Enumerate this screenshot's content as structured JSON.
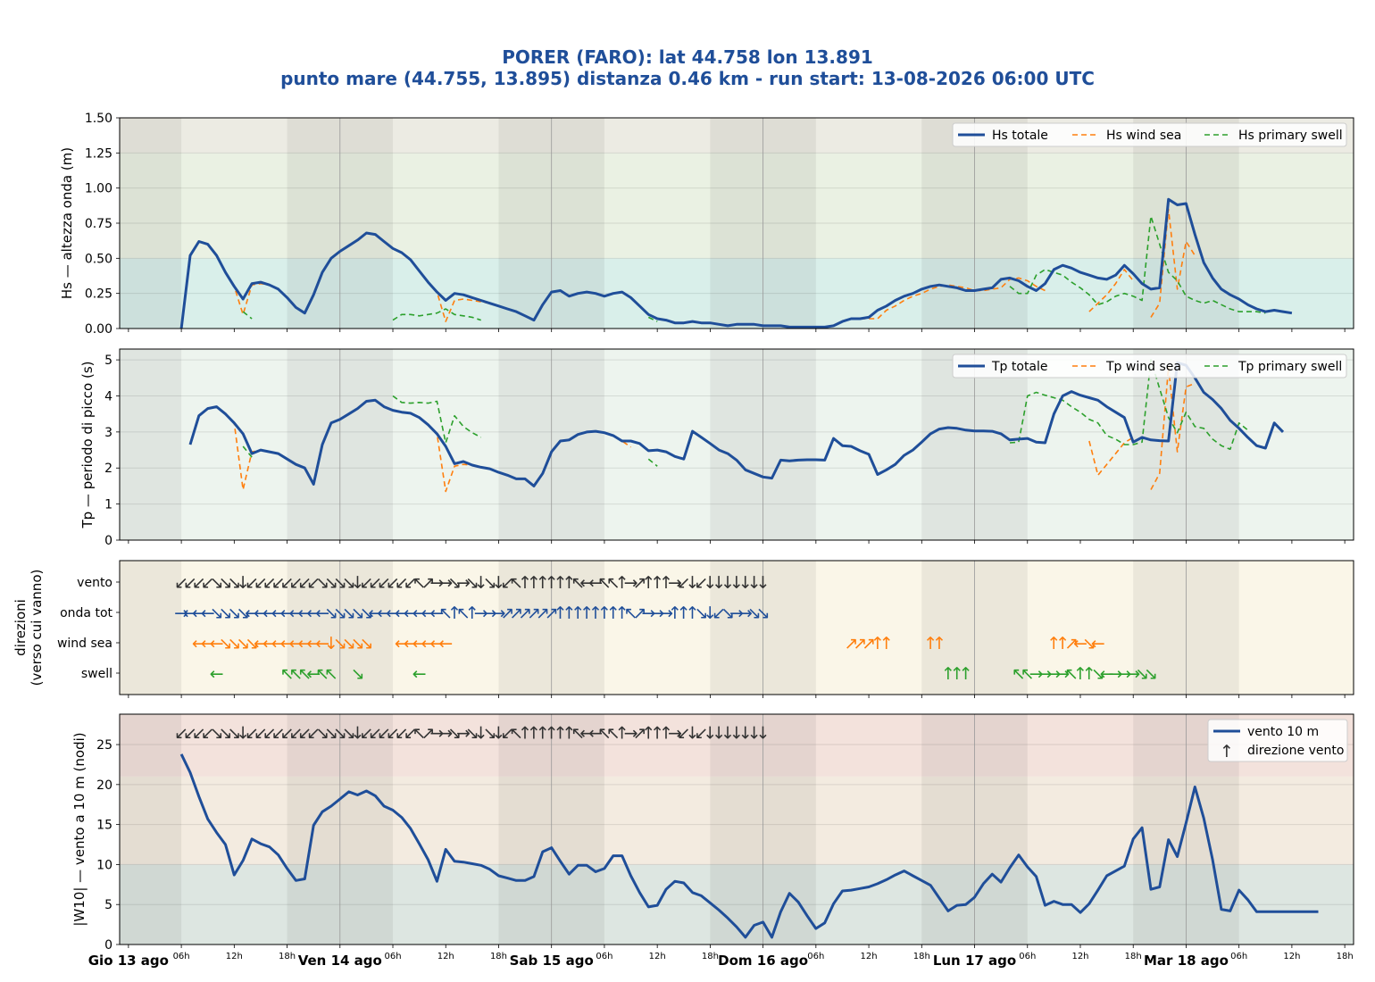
{
  "title_line1": "PORER (FARO): lat 44.758 lon 13.891",
  "title_line2": "punto mare (44.755, 13.895)  distanza 0.46 km  -  run start: 13-08-2026 06:00 UTC",
  "colors": {
    "title": "#1f4e99",
    "total": "#1f4e99",
    "wind": "#ff7f0e",
    "swell": "#2ca02c",
    "wind_arrow": "#333333"
  },
  "x_axis": {
    "day_labels": [
      "Gio 13 ago",
      "Ven 14 ago",
      "Sab 15 ago",
      "Dom 16 ago",
      "Lun 17 ago",
      "Mar 18 ago"
    ],
    "hour_labels": [
      "06h",
      "12h",
      "18h"
    ],
    "final_hour_label": "18h",
    "xlim_hours": [
      -1,
      139
    ]
  },
  "chart_data": [
    {
      "type": "line",
      "id": "hs",
      "ylabel": "Hs — altezza onda (m)",
      "ylim": [
        0,
        1.5
      ],
      "yticks": [
        "0.00",
        "0.25",
        "0.50",
        "0.75",
        "1.00",
        "1.25",
        "1.50"
      ],
      "legend": [
        "Hs totale",
        "Hs wind sea",
        "Hs primary swell"
      ],
      "series": [
        {
          "name": "Hs totale",
          "start": 6,
          "step": 1,
          "values": [
            0.0,
            0.52,
            0.62,
            0.6,
            0.52,
            0.4,
            0.3,
            0.21,
            0.32,
            0.33,
            0.31,
            0.28,
            0.22,
            0.15,
            0.11,
            0.24,
            0.4,
            0.5,
            0.55,
            0.59,
            0.63,
            0.68,
            0.67,
            0.62,
            0.57,
            0.54,
            0.49,
            0.41,
            0.33,
            0.26,
            0.2,
            0.25,
            0.24,
            0.22,
            0.2,
            0.18,
            0.16,
            0.14,
            0.12,
            0.09,
            0.06,
            0.17,
            0.26,
            0.27,
            0.23,
            0.25,
            0.26,
            0.25,
            0.23,
            0.25,
            0.26,
            0.22,
            0.16,
            0.1,
            0.07,
            0.06,
            0.04,
            0.04,
            0.05,
            0.04,
            0.04,
            0.03,
            0.02,
            0.03,
            0.03,
            0.03,
            0.02,
            0.02,
            0.02,
            0.01,
            0.01,
            0.01,
            0.01,
            0.01,
            0.02,
            0.05,
            0.07,
            0.07,
            0.08,
            0.13,
            0.16,
            0.2,
            0.23,
            0.25,
            0.28,
            0.3,
            0.31,
            0.3,
            0.29,
            0.27,
            0.27,
            0.28,
            0.29,
            0.35,
            0.36,
            0.34,
            0.3,
            0.27,
            0.32,
            0.42,
            0.45,
            0.43,
            0.4,
            0.38,
            0.36,
            0.35,
            0.38,
            0.45,
            0.39,
            0.32,
            0.28,
            0.29,
            0.92,
            0.88,
            0.89,
            0.67,
            0.47,
            0.36,
            0.28,
            0.24,
            0.21,
            0.17,
            0.14,
            0.12,
            0.13,
            0.12,
            0.11
          ]
        },
        {
          "name": "Hs wind sea",
          "segments": [
            {
              "start": 7,
              "values": [
                0.52,
                0.62,
                0.6,
                0.52,
                0.4,
                0.3,
                0.1,
                0.31,
                0.32,
                0.31,
                0.28,
                0.22,
                0.15,
                0.11,
                0.24,
                0.4,
                0.5,
                0.55,
                0.59,
                0.63,
                0.68,
                0.67,
                0.62,
                0.57,
                0.54,
                0.49,
                0.41,
                0.33,
                0.26,
                0.05,
                0.2,
                0.21,
                0.2,
                0.19,
                0.18,
                0.16,
                0.14,
                0.12,
                0.09,
                0.06,
                0.17,
                0.26,
                0.27,
                0.23,
                0.25,
                0.26,
                0.25,
                0.23,
                0.25,
                0.26,
                0.22,
                0.16,
                0.1
              ]
            },
            {
              "start": 83,
              "values": [
                0.07,
                0.07,
                0.07,
                0.13,
                0.16,
                0.2,
                0.23,
                0.25,
                0.28,
                0.3,
                0.31,
                0.3,
                0.29,
                0.27,
                0.27,
                0.28,
                0.29,
                0.35,
                0.36,
                0.34,
                0.3,
                0.27
              ]
            },
            {
              "start": 109,
              "values": [
                0.12,
                0.18,
                0.24,
                0.32,
                0.42,
                0.34
              ]
            },
            {
              "start": 116,
              "values": [
                0.08,
                0.18,
                0.85,
                0.28,
                0.62,
                0.52
              ]
            }
          ]
        },
        {
          "name": "Hs primary swell",
          "segments": [
            {
              "start": 13,
              "values": [
                0.12,
                0.07
              ]
            },
            {
              "start": 30,
              "values": [
                0.06,
                0.1,
                0.1,
                0.09,
                0.1,
                0.11,
                0.14,
                0.1,
                0.09,
                0.08,
                0.06
              ]
            },
            {
              "start": 59,
              "values": [
                0.08,
                0.05
              ]
            },
            {
              "start": 100,
              "values": [
                0.3,
                0.25,
                0.25,
                0.38,
                0.42,
                0.4,
                0.38,
                0.33,
                0.29,
                0.24,
                0.17,
                0.19,
                0.23,
                0.25,
                0.23,
                0.2,
                0.8,
                0.6,
                0.4,
                0.34,
                0.23,
                0.2,
                0.18,
                0.2,
                0.17,
                0.14,
                0.12,
                0.12,
                0.12,
                0.11
              ]
            }
          ]
        }
      ]
    },
    {
      "type": "line",
      "id": "tp",
      "ylabel": "Tp — periodo di picco (s)",
      "ylim": [
        0,
        5.3
      ],
      "yticks": [
        "0",
        "1",
        "2",
        "3",
        "4",
        "5"
      ],
      "legend": [
        "Tp totale",
        "Tp wind sea",
        "Tp primary swell"
      ],
      "series": [
        {
          "name": "Tp totale",
          "start": 7,
          "step": 1,
          "values": [
            2.65,
            3.45,
            3.65,
            3.7,
            3.5,
            3.25,
            2.95,
            2.4,
            2.5,
            2.45,
            2.4,
            2.25,
            2.1,
            2.0,
            1.55,
            2.65,
            3.25,
            3.35,
            3.5,
            3.65,
            3.85,
            3.88,
            3.7,
            3.6,
            3.55,
            3.52,
            3.4,
            3.2,
            2.95,
            2.6,
            2.12,
            2.18,
            2.08,
            2.02,
            1.98,
            1.88,
            1.8,
            1.7,
            1.7,
            1.5,
            1.85,
            2.45,
            2.75,
            2.78,
            2.93,
            3.0,
            3.02,
            2.98,
            2.9,
            2.75,
            2.75,
            2.68,
            2.48,
            2.5,
            2.45,
            2.32,
            2.25,
            3.02,
            2.85,
            2.68,
            2.5,
            2.4,
            2.22,
            1.95,
            1.85,
            1.75,
            1.72,
            2.22,
            2.2,
            2.22,
            2.23,
            2.23,
            2.22,
            2.82,
            2.62,
            2.6,
            2.48,
            2.38,
            1.82,
            1.95,
            2.1,
            2.35,
            2.5,
            2.72,
            2.95,
            3.08,
            3.12,
            3.1,
            3.05,
            3.03,
            3.03,
            3.02,
            2.95,
            2.78,
            2.8,
            2.82,
            2.72,
            2.7,
            3.5,
            4.0,
            4.12,
            4.02,
            3.95,
            3.88,
            3.7,
            3.55,
            3.4,
            2.72,
            2.85,
            2.78,
            2.76,
            2.75,
            4.92,
            4.85,
            4.5,
            4.1,
            3.9,
            3.65,
            3.32,
            3.1,
            2.85,
            2.62,
            2.55,
            3.25,
            3.0
          ]
        },
        {
          "name": "Tp wind sea",
          "segments": [
            {
              "start": 7,
              "values": [
                2.65,
                3.45,
                3.65,
                3.7,
                3.5,
                3.25,
                1.4,
                2.45,
                2.5,
                2.45,
                2.4,
                2.25,
                2.1,
                2.0,
                1.55,
                2.65,
                3.25,
                3.35,
                3.5,
                3.65,
                3.85,
                3.88,
                3.7,
                3.6,
                3.55,
                3.52,
                3.4,
                3.2,
                2.95,
                1.35,
                2.05,
                2.1,
                2.08,
                2.02,
                1.98,
                1.88,
                1.8,
                1.7,
                1.7,
                1.5,
                1.85,
                2.45,
                2.75,
                2.78,
                2.93,
                3.0,
                3.02,
                2.98,
                2.9,
                2.75,
                2.58
              ]
            },
            {
              "start": 109,
              "values": [
                2.75,
                1.8,
                2.1,
                2.4,
                2.7,
                2.85
              ]
            },
            {
              "start": 116,
              "values": [
                1.4,
                1.85,
                4.8,
                2.45,
                4.25,
                4.35
              ]
            }
          ]
        },
        {
          "name": "Tp primary swell",
          "segments": [
            {
              "start": 13,
              "values": [
                2.6,
                2.3
              ]
            },
            {
              "start": 30,
              "values": [
                4.0,
                3.82,
                3.8,
                3.82,
                3.8,
                3.85,
                2.7,
                3.45,
                3.15,
                2.98,
                2.85
              ]
            },
            {
              "start": 59,
              "values": [
                2.25,
                2.05
              ]
            },
            {
              "start": 100,
              "values": [
                2.7,
                2.72,
                4.0,
                4.1,
                4.02,
                3.95,
                3.88,
                3.7,
                3.55,
                3.35,
                3.25,
                2.9,
                2.8,
                2.65,
                2.65,
                2.72,
                5.0,
                4.2,
                3.4,
                2.98,
                3.55,
                3.15,
                3.1,
                2.8,
                2.62,
                2.52,
                3.25,
                3.05
              ]
            }
          ]
        }
      ]
    },
    {
      "type": "table",
      "id": "directions",
      "ylabel_line1": "direzioni",
      "ylabel_line2": "(verso cui vanno)",
      "rows": [
        {
          "label": "vento",
          "color": "#333333",
          "start": 6,
          "arrows": "↙↙↙↙↘↘↘↓↙↙↙↙↙↙↙↙↘↘↘↘↓↙↙↙↙↙↙↖↗→→↘→↘↓↘↓↙↖↑↑↑↑↑↑↖←←↖↖↑→↗↑↑↑→↙↓↙↓↓↓↓↓↓↓"
        },
        {
          "label": "onda tot",
          "color": "#1f4e99",
          "start": 6,
          "arrows": "→←←←↘↘↘↘←←←←←←←←←↘↘↘↘↘←←←←←←←←↖↑↖↑→→→↗↗↗↗↗↗↑↑↑↑↑↑↑↑↖↗→→→↑↑↑↘↓↙↘→→↘↘"
        },
        {
          "label": "wind sea",
          "color": "#ff7f0e",
          "segments": [
            {
              "start": 8,
              "arrows": "←←←↘↘↘↘←←←←←←←←↓↘↘↘↘"
            },
            {
              "start": 31,
              "arrows": "←←←←←←"
            },
            {
              "start": 82,
              "arrows": "↗↗↗↑↑"
            },
            {
              "start": 91,
              "arrows": "↑↑"
            },
            {
              "start": 105,
              "arrows": "↑↑↗←↘←"
            }
          ]
        },
        {
          "label": "swell",
          "color": "#2ca02c",
          "segments": [
            {
              "start": 10,
              "arrows": "←"
            },
            {
              "start": 18,
              "arrows": "↖↖↖←↖↖"
            },
            {
              "start": 26,
              "arrows": "↘"
            },
            {
              "start": 33,
              "arrows": "←"
            },
            {
              "start": 93,
              "arrows": "↑↑↑"
            },
            {
              "start": 101,
              "arrows": "↖↖→→→→↖↑↑↘←→→→↘↘"
            }
          ]
        }
      ]
    },
    {
      "type": "line",
      "id": "wind",
      "ylabel": "|W10| — vento a 10 m (nodi)",
      "ylim": [
        0,
        28.8
      ],
      "yticks": [
        "0",
        "5",
        "10",
        "15",
        "20",
        "25"
      ],
      "legend": [
        "vento 10 m",
        "direzione vento"
      ],
      "series": [
        {
          "name": "vento 10 m",
          "start": 6,
          "step": 1,
          "values": [
            23.8,
            21.5,
            18.5,
            15.7,
            14.0,
            12.5,
            8.7,
            10.5,
            13.2,
            12.6,
            12.2,
            11.2,
            9.5,
            8.0,
            8.2,
            14.9,
            16.6,
            17.3,
            18.2,
            19.1,
            18.7,
            19.2,
            18.6,
            17.3,
            16.8,
            15.9,
            14.5,
            12.6,
            10.6,
            7.9,
            11.9,
            10.4,
            10.3,
            10.1,
            9.9,
            9.4,
            8.6,
            8.3,
            8.0,
            8.0,
            8.5,
            11.6,
            12.1,
            10.4,
            8.8,
            9.9,
            9.9,
            9.1,
            9.5,
            11.1,
            11.1,
            8.6,
            6.5,
            4.7,
            4.9,
            6.9,
            7.9,
            7.7,
            6.5,
            6.1,
            5.2,
            4.3,
            3.3,
            2.2,
            0.9,
            2.4,
            2.8,
            0.9,
            4.1,
            6.4,
            5.3,
            3.6,
            2.0,
            2.7,
            5.1,
            6.7,
            6.8,
            7.0,
            7.2,
            7.6,
            8.1,
            8.7,
            9.2,
            8.6,
            8.0,
            7.4,
            5.8,
            4.2,
            4.9,
            5.0,
            5.9,
            7.6,
            8.8,
            7.8,
            9.6,
            11.2,
            9.7,
            8.5,
            4.9,
            5.4,
            5.0,
            5.0,
            4.0,
            5.1,
            6.8,
            8.6,
            9.2,
            9.8,
            13.2,
            14.6,
            6.9,
            7.2,
            13.1,
            11.0,
            15.2,
            19.7,
            15.8,
            10.6,
            4.4,
            4.2,
            6.8,
            5.6,
            4.1,
            4.1,
            4.1,
            4.1,
            4.1,
            4.1,
            4.1,
            4.1
          ]
        }
      ]
    }
  ]
}
